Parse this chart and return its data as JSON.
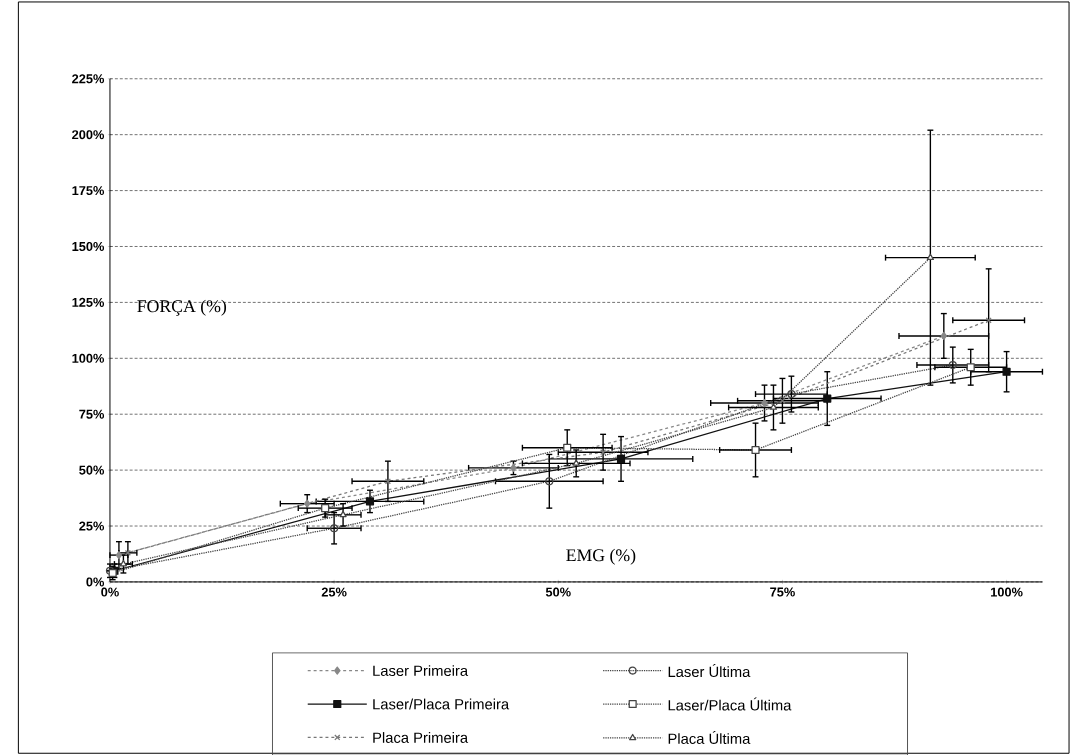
{
  "chart_data": {
    "type": "line",
    "xlabel": "EMG (%)",
    "ylabel": "FORÇA (%)",
    "xlim": [
      0,
      104
    ],
    "ylim": [
      0,
      225
    ],
    "xticks": [
      {
        "value": 0,
        "label": "0%"
      },
      {
        "value": 25,
        "label": "25%"
      },
      {
        "value": 50,
        "label": "50%"
      },
      {
        "value": 75,
        "label": "75%"
      },
      {
        "value": 100,
        "label": "100%"
      }
    ],
    "yticks": [
      {
        "value": 0,
        "label": "0%"
      },
      {
        "value": 25,
        "label": "25%"
      },
      {
        "value": 50,
        "label": "50%"
      },
      {
        "value": 75,
        "label": "75%"
      },
      {
        "value": 100,
        "label": "100%"
      },
      {
        "value": 125,
        "label": "125%"
      },
      {
        "value": 150,
        "label": "150%"
      },
      {
        "value": 175,
        "label": "175%"
      },
      {
        "value": 200,
        "label": "200%"
      },
      {
        "value": 225,
        "label": "225%"
      }
    ],
    "grid": "y",
    "legend": "bottom",
    "series": [
      {
        "name": "Laser Primeira",
        "color": "#888888",
        "line_style": "dashed",
        "marker": "diamond",
        "x": [
          1,
          22,
          45,
          73,
          93
        ],
        "values": [
          12,
          35,
          51,
          80,
          110
        ],
        "errors": [
          6,
          4,
          3,
          8,
          10
        ],
        "xerrors": [
          1,
          3,
          5,
          6,
          5
        ]
      },
      {
        "name": "Laser/Placa Primeira",
        "color": "#111111",
        "line_style": "solid",
        "marker": "square",
        "x": [
          0.5,
          29,
          57,
          80,
          100
        ],
        "values": [
          5,
          36,
          55,
          82,
          94
        ],
        "errors": [
          3,
          5,
          10,
          12,
          9
        ],
        "xerrors": [
          0.3,
          6,
          8,
          6,
          4
        ]
      },
      {
        "name": "Placa Primeira",
        "color": "#777777",
        "line_style": "dashed",
        "marker": "cross",
        "x": [
          2,
          31,
          55,
          75,
          98
        ],
        "values": [
          13,
          45,
          58,
          81,
          117
        ],
        "errors": [
          5,
          9,
          8,
          10,
          23
        ],
        "xerrors": [
          1,
          4,
          5,
          5,
          4
        ]
      },
      {
        "name": "Laser Última",
        "color": "#444444",
        "line_style": "dotted",
        "marker": "circle",
        "x": [
          0,
          25,
          49,
          76,
          94
        ],
        "values": [
          5,
          24,
          45,
          84,
          97
        ],
        "errors": [
          3,
          7,
          12,
          8,
          8
        ],
        "xerrors": [
          null,
          3,
          6,
          4,
          4
        ]
      },
      {
        "name": "Laser/Placa Última",
        "color": "#444444",
        "line_style": "dotted",
        "marker": "square",
        "x": [
          0.3,
          24,
          51,
          72,
          96
        ],
        "values": [
          4,
          33,
          60,
          59,
          96
        ],
        "errors": [
          3,
          4,
          8,
          12,
          8
        ],
        "xerrors": [
          0.3,
          3,
          5,
          4,
          4
        ]
      },
      {
        "name": "Placa Última",
        "color": "#444444",
        "line_style": "dotted",
        "marker": "triangle",
        "x": [
          1.5,
          26,
          52,
          74,
          91.5
        ],
        "values": [
          8,
          30,
          53,
          78,
          145
        ],
        "errors": [
          4,
          5,
          6,
          10,
          57
        ],
        "xerrors": [
          1,
          2,
          6,
          5,
          5
        ]
      }
    ]
  }
}
